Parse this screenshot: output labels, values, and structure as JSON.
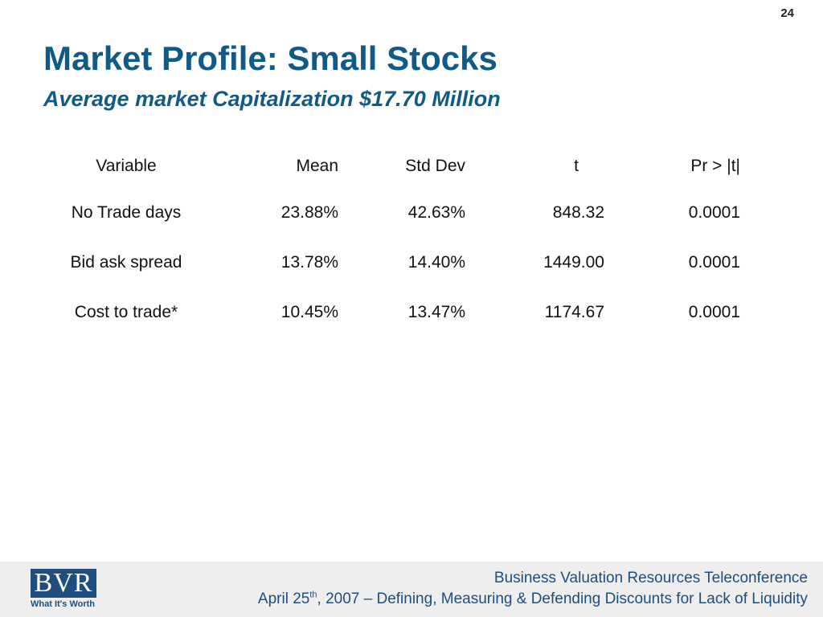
{
  "slide": {
    "number": "24",
    "title": "Market Profile: Small Stocks",
    "subtitle": "Average market Capitalization $17.70 Million"
  },
  "table": {
    "headers": [
      "Variable",
      "Mean",
      "Std Dev",
      "t",
      "Pr > |t|"
    ],
    "rows": [
      [
        "No Trade days",
        "23.88%",
        "42.63%",
        "848.32",
        "0.0001"
      ],
      [
        "Bid ask spread",
        "13.78%",
        "14.40%",
        "1449.00",
        "0.0001"
      ],
      [
        "Cost to trade*",
        "10.45%",
        "13.47%",
        "1174.67",
        "0.0001"
      ]
    ]
  },
  "footer": {
    "logo_text": "BVR",
    "logo_tagline": "What It's Worth",
    "line1": "Business Valuation Resources Teleconference",
    "line2_prefix": "April 25",
    "line2_superscript": "th",
    "line2_suffix": ", 2007 – Defining, Measuring & Defending Discounts for Lack of Liquidity"
  },
  "colors": {
    "title": "#0f5a86",
    "footer_text": "#1d4e7f",
    "footer_background": "#eeeeee",
    "logo_background": "#1d4e7f"
  }
}
